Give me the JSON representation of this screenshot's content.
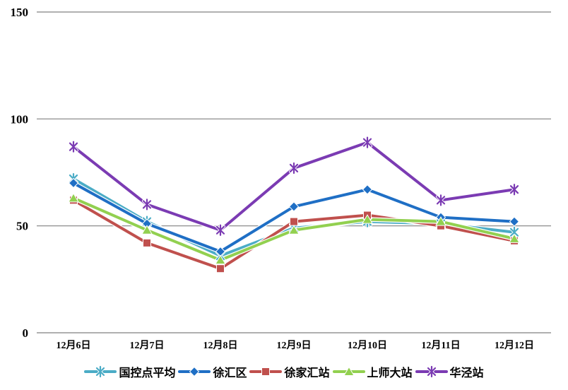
{
  "chart_data": {
    "type": "line",
    "title": "",
    "xlabel": "",
    "ylabel": "",
    "categories": [
      "12月6日",
      "12月7日",
      "12月8日",
      "12月9日",
      "12月10日",
      "12月11日",
      "12月12日"
    ],
    "series": [
      {
        "name": "国控点平均",
        "color": "#4BACC6",
        "marker": "star",
        "values": [
          72,
          52,
          36,
          49,
          52,
          51,
          47
        ]
      },
      {
        "name": "徐汇区",
        "color": "#1F6FC5",
        "marker": "diamond",
        "values": [
          70,
          51,
          38,
          59,
          67,
          54,
          52
        ]
      },
      {
        "name": "徐家汇站",
        "color": "#C0504D",
        "marker": "square",
        "values": [
          62,
          42,
          30,
          52,
          55,
          50,
          43
        ]
      },
      {
        "name": "上师大站",
        "color": "#92D050",
        "marker": "triangle",
        "values": [
          63,
          48,
          34,
          48,
          53,
          52,
          44
        ]
      },
      {
        "name": "华泾站",
        "color": "#7B3BB3",
        "marker": "star",
        "values": [
          87,
          60,
          48,
          77,
          89,
          62,
          67
        ]
      }
    ],
    "ylim": [
      0,
      150
    ],
    "yticks": [
      0,
      50,
      100,
      150
    ],
    "grid": "horizontal",
    "gridline_color": "#808080",
    "background_color": "#FFFFFF",
    "legend_position": "bottom"
  }
}
